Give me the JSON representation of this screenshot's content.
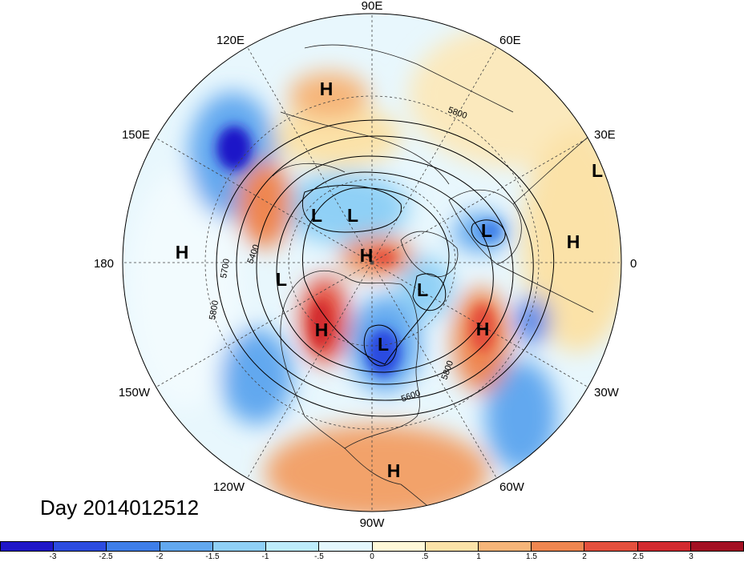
{
  "title": "Day 2014012512",
  "longitude_labels": [
    "90E",
    "60E",
    "30E",
    "0",
    "30W",
    "60W",
    "90W",
    "120W",
    "150W",
    "180",
    "150E",
    "120E"
  ],
  "pressure_centers": [
    {
      "label": "H",
      "name": "high-siberia-north"
    },
    {
      "label": "H",
      "name": "high-north-pacific"
    },
    {
      "label": "H",
      "name": "high-arctic"
    },
    {
      "label": "H",
      "name": "high-north-america-west"
    },
    {
      "label": "H",
      "name": "high-north-atlantic"
    },
    {
      "label": "H",
      "name": "high-africa"
    },
    {
      "label": "H",
      "name": "high-south-america"
    },
    {
      "label": "L",
      "name": "low-east-siberia"
    },
    {
      "label": "L",
      "name": "low-siberia"
    },
    {
      "label": "L",
      "name": "low-bering"
    },
    {
      "label": "L",
      "name": "low-greenland"
    },
    {
      "label": "L",
      "name": "low-hudson-bay"
    },
    {
      "label": "L",
      "name": "low-scandinavia"
    },
    {
      "label": "L",
      "name": "low-europe-east"
    }
  ],
  "contour_labels": [
    "5400",
    "5700",
    "5800",
    "5800",
    "5600",
    "5800"
  ],
  "colorbar": {
    "colors": [
      "#1f16c8",
      "#2c4ce0",
      "#3e7ee9",
      "#62a8ef",
      "#8fd0f6",
      "#bdecfb",
      "#e4f7fd",
      "#fff8d8",
      "#fbe2a8",
      "#f6b579",
      "#ef8650",
      "#e5503d",
      "#d22a2f",
      "#a30f22"
    ],
    "tick_labels": [
      "-3",
      "-2.5",
      "-2",
      "-1.5",
      "-1",
      "-.5",
      "0",
      ".5",
      "1",
      "1.5",
      "2",
      "2.5",
      "3"
    ]
  }
}
